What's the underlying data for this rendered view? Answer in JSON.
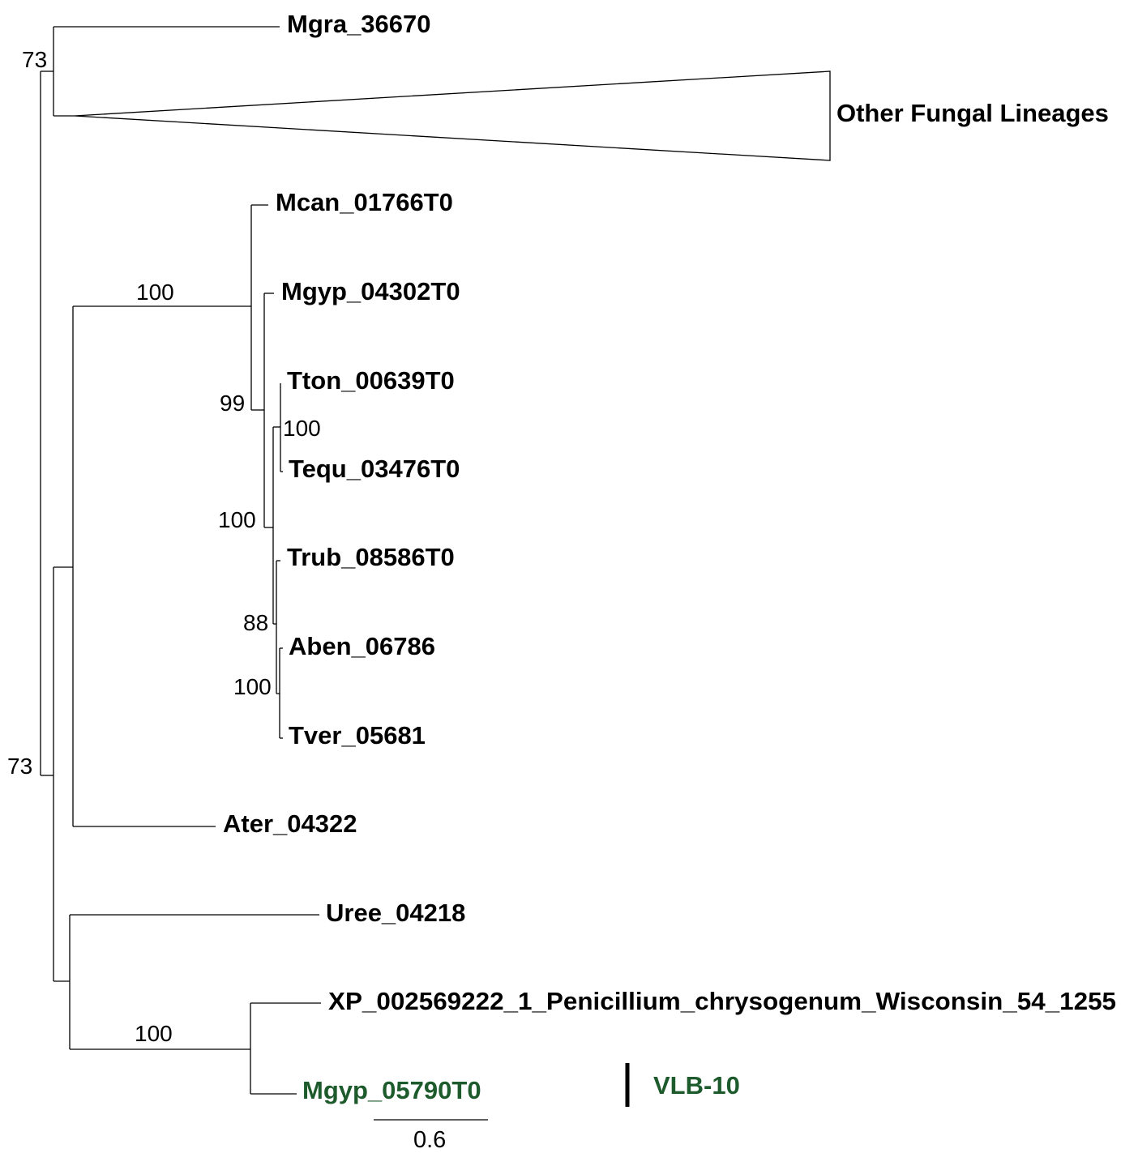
{
  "leaves": {
    "mgra": "Mgra_36670",
    "collapsed": "Other Fungal Lineages",
    "mcan": "Mcan_01766T0",
    "mgyp1": "Mgyp_04302T0",
    "tton": "Tton_00639T0",
    "tequ": "Tequ_03476T0",
    "trub": "Trub_08586T0",
    "aben": "Aben_06786",
    "tver": "Tver_05681",
    "ater": "Ater_04322",
    "uree": "Uree_04218",
    "xp": "XP_002569222_1_Penicillium_chrysogenum_Wisconsin_54_1255",
    "mgyp2": "Mgyp_05790T0"
  },
  "support": {
    "top": "73",
    "root": "73",
    "derm_clade": "100",
    "n99": "99",
    "n100_tt": "100",
    "n100_inner": "100",
    "n88": "88",
    "n100_at": "100",
    "pen_clade": "100"
  },
  "clade_label": "VLB-10",
  "scale_bar": "0.6",
  "colors": {
    "highlight": "#1d5a2c",
    "branch": "#000000"
  }
}
